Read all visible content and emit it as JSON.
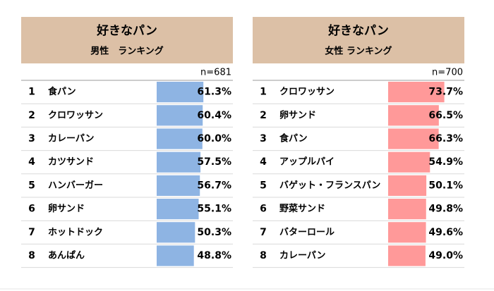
{
  "chart_data": [
    {
      "type": "bar",
      "title": "好きなパン",
      "subtitle": "男性　ランキング",
      "note": "n=681",
      "ranks": [
        1,
        2,
        3,
        4,
        5,
        6,
        7,
        8
      ],
      "categories": [
        "食パン",
        "クロワッサン",
        "カレーパン",
        "カツサンド",
        "ハンバーガー",
        "卵サンド",
        "ホットドック",
        "あんぱん"
      ],
      "values": [
        61.3,
        60.4,
        60.0,
        57.5,
        56.7,
        55.1,
        50.3,
        48.8
      ],
      "value_labels": [
        "61.3%",
        "60.4%",
        "60.0%",
        "57.5%",
        "56.7%",
        "55.1%",
        "50.3%",
        "48.8%"
      ],
      "color": "#8eb4e3",
      "xlim": [
        0,
        100
      ]
    },
    {
      "type": "bar",
      "title": "好きなパン",
      "subtitle": "女性 ランキング",
      "note": "n=700",
      "ranks": [
        1,
        2,
        3,
        4,
        5,
        6,
        7,
        8
      ],
      "categories": [
        "クロワッサン",
        "卵サンド",
        "食パン",
        "アップルパイ",
        "バゲット・フランスパン",
        "野菜サンド",
        "バターロール",
        "カレーパン"
      ],
      "values": [
        73.7,
        66.5,
        66.3,
        54.9,
        50.1,
        49.8,
        49.6,
        49.0
      ],
      "value_labels": [
        "73.7%",
        "66.5%",
        "66.3%",
        "54.9%",
        "50.1%",
        "49.8%",
        "49.6%",
        "49.0%"
      ],
      "color": "#ff9999",
      "xlim": [
        0,
        100
      ]
    }
  ]
}
